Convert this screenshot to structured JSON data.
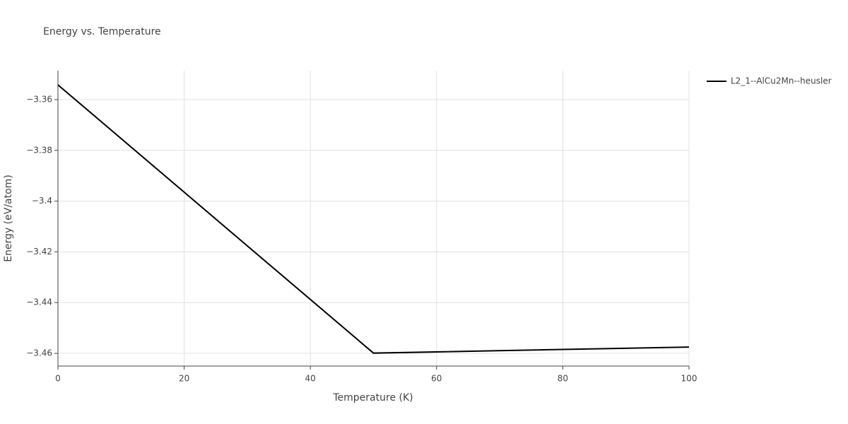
{
  "chart_data": {
    "type": "line",
    "title": "Energy vs. Temperature",
    "xlabel": "Temperature (K)",
    "ylabel": "Energy (eV/atom)",
    "x": [
      0,
      50,
      100
    ],
    "series": [
      {
        "name": "L2_1--AlCu2Mn--heusler",
        "color": "#000000",
        "values": [
          -3.3542,
          -3.4599,
          -3.4575
        ]
      }
    ],
    "xlim": [
      0,
      100
    ],
    "xticks": [
      0,
      20,
      40,
      60,
      80,
      100
    ],
    "ylim": [
      -3.465,
      -3.3486
    ],
    "yticks": [
      {
        "value": -3.46,
        "label": "−3.46"
      },
      {
        "value": -3.44,
        "label": "−3.44"
      },
      {
        "value": -3.42,
        "label": "−3.42"
      },
      {
        "value": -3.4,
        "label": "−3.4"
      },
      {
        "value": -3.38,
        "label": "−3.38"
      },
      {
        "value": -3.36,
        "label": "−3.36"
      }
    ],
    "grid": true,
    "legend": "right"
  }
}
